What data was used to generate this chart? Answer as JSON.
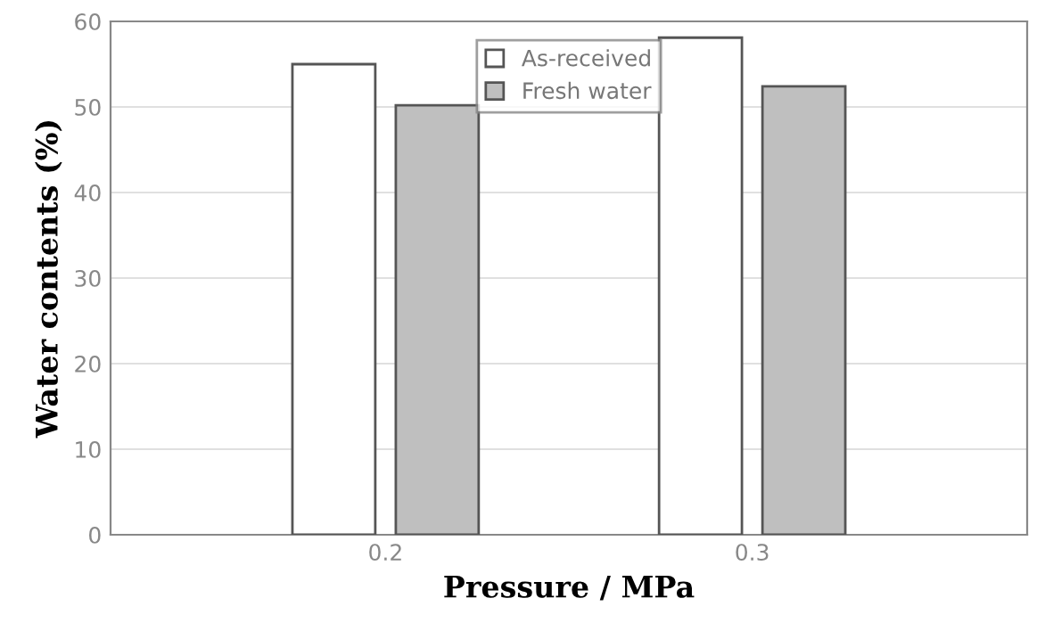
{
  "chart_data": {
    "type": "bar",
    "xlabel": "Pressure / MPa",
    "ylabel": "Water contents (%)",
    "categories": [
      "0.2",
      "0.3"
    ],
    "series": [
      {
        "name": "As-received",
        "color": "#ffffff",
        "values": [
          55.0,
          58.1
        ]
      },
      {
        "name": "Fresh water",
        "color": "#bfbfbf",
        "values": [
          50.2,
          52.4
        ]
      }
    ],
    "ylim": [
      0,
      60
    ],
    "yticks": [
      0,
      10,
      20,
      30,
      40,
      50,
      60
    ],
    "grid": "y",
    "legend": "top"
  }
}
